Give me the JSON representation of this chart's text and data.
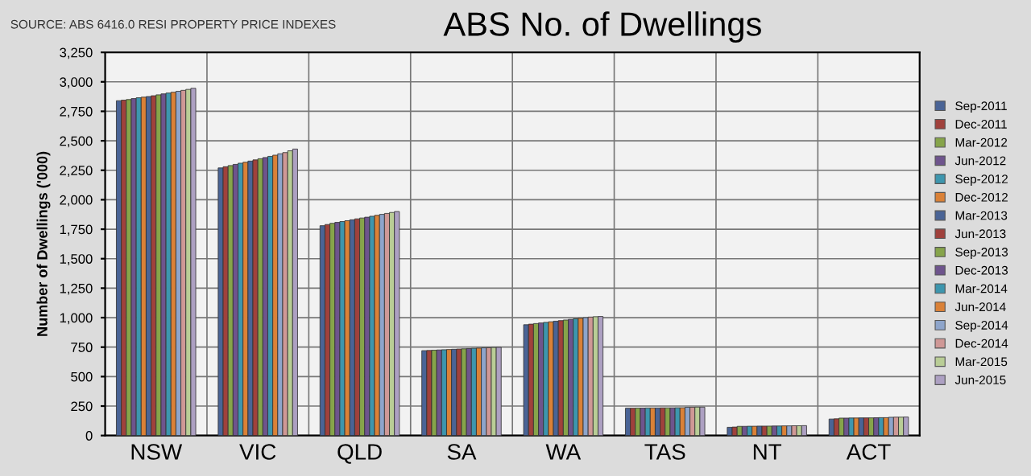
{
  "chart_data": {
    "type": "bar",
    "title": "ABS No. of Dwellings",
    "ylabel": "Number of Dwellings ('000)",
    "annotations": [
      "SOURCE: ABS 6416.0 RESI PROPERTY PRICE INDEXES"
    ],
    "categories": [
      "NSW",
      "VIC",
      "QLD",
      "SA",
      "WA",
      "TAS",
      "NT",
      "ACT"
    ],
    "ylim": [
      0,
      3250
    ],
    "yticks": [
      0,
      {
        "value": 250,
        "label": "250"
      },
      {
        "value": 500,
        "label": "500"
      },
      {
        "value": 750,
        "label": "750"
      },
      {
        "value": 1000,
        "label": "1,000"
      },
      {
        "value": 1250,
        "label": "1,250"
      },
      {
        "value": 1500,
        "label": "1,500"
      },
      {
        "value": 1750,
        "label": "1,750"
      },
      {
        "value": 2000,
        "label": "2,000"
      },
      {
        "value": 2250,
        "label": "2,250"
      },
      {
        "value": 2500,
        "label": "2,500"
      },
      {
        "value": 2750,
        "label": "2,750"
      },
      {
        "value": 3000,
        "label": "3,000"
      },
      {
        "value": 3250,
        "label": "3,250"
      }
    ],
    "grid": true,
    "legend": "right",
    "series": [
      {
        "name": "Sep-2011",
        "color": "#4a6496",
        "values": [
          2840,
          2270,
          1780,
          720,
          940,
          232,
          70,
          140
        ]
      },
      {
        "name": "Dec-2011",
        "color": "#a0413c",
        "values": [
          2845,
          2280,
          1790,
          722,
          945,
          232,
          72,
          142
        ]
      },
      {
        "name": "Mar-2012",
        "color": "#86a44a",
        "values": [
          2850,
          2290,
          1800,
          724,
          950,
          233,
          78,
          148
        ]
      },
      {
        "name": "Jun-2012",
        "color": "#6e548d",
        "values": [
          2858,
          2300,
          1808,
          726,
          955,
          233,
          78,
          148
        ]
      },
      {
        "name": "Sep-2012",
        "color": "#3d96ae",
        "values": [
          2865,
          2310,
          1815,
          728,
          960,
          234,
          79,
          149
        ]
      },
      {
        "name": "Dec-2012",
        "color": "#da8137",
        "values": [
          2870,
          2318,
          1822,
          730,
          965,
          234,
          79,
          149
        ]
      },
      {
        "name": "Mar-2013",
        "color": "#4a6496",
        "values": [
          2875,
          2328,
          1830,
          732,
          970,
          234,
          80,
          150
        ]
      },
      {
        "name": "Jun-2013",
        "color": "#a0413c",
        "values": [
          2882,
          2338,
          1838,
          734,
          975,
          235,
          80,
          150
        ]
      },
      {
        "name": "Sep-2013",
        "color": "#86a44a",
        "values": [
          2890,
          2348,
          1845,
          736,
          980,
          235,
          80,
          150
        ]
      },
      {
        "name": "Dec-2013",
        "color": "#6e548d",
        "values": [
          2898,
          2358,
          1852,
          738,
          985,
          235,
          81,
          151
        ]
      },
      {
        "name": "Mar-2014",
        "color": "#3d96ae",
        "values": [
          2905,
          2368,
          1860,
          740,
          990,
          236,
          81,
          152
        ]
      },
      {
        "name": "Jun-2014",
        "color": "#da8137",
        "values": [
          2912,
          2378,
          1868,
          742,
          995,
          236,
          82,
          152
        ]
      },
      {
        "name": "Sep-2014",
        "color": "#8ea5cb",
        "values": [
          2920,
          2390,
          1876,
          744,
          1000,
          240,
          82,
          155
        ]
      },
      {
        "name": "Dec-2014",
        "color": "#cf9896",
        "values": [
          2928,
          2400,
          1884,
          745,
          1005,
          240,
          83,
          156
        ]
      },
      {
        "name": "Mar-2015",
        "color": "#b9cd96",
        "values": [
          2936,
          2415,
          1892,
          747,
          1008,
          241,
          83,
          156
        ]
      },
      {
        "name": "Jun-2015",
        "color": "#ada0c2",
        "values": [
          2945,
          2430,
          1900,
          748,
          1010,
          241,
          84,
          157
        ]
      }
    ]
  }
}
